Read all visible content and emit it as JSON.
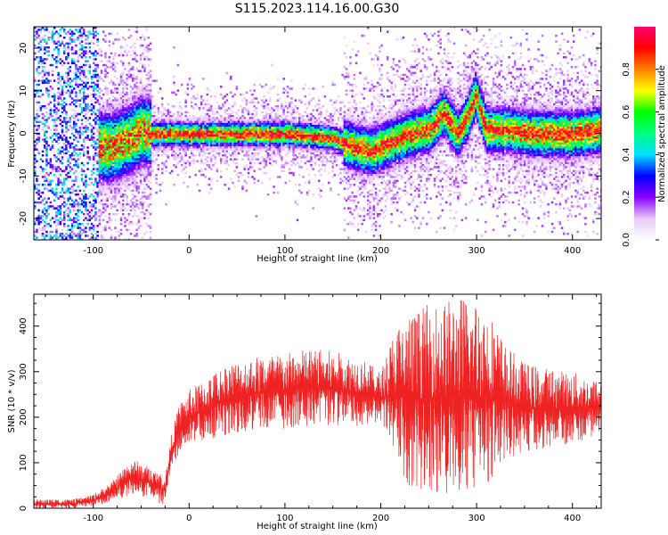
{
  "chart_data": [
    {
      "type": "heatmap",
      "title": "S115.2023.114.16.00.G30",
      "xlabel": "Height of straight line (km)",
      "ylabel": "Frequency (Hz)",
      "xlim": [
        -162,
        430
      ],
      "ylim": [
        -25,
        25
      ],
      "xticks": [
        -100,
        0,
        100,
        200,
        300,
        400
      ],
      "yticks": [
        -20,
        -10,
        0,
        10,
        20
      ],
      "colorbar": {
        "label": "Normalized spectral amplitude",
        "range": [
          0,
          1
        ],
        "ticks": [
          0.0,
          0.2,
          0.4,
          0.6,
          0.8
        ],
        "colormap": [
          "#ffffff",
          "#e8c8f8",
          "#8800ff",
          "#0000ff",
          "#00e0ff",
          "#00ff80",
          "#00ff00",
          "#ffff00",
          "#ff8000",
          "#ff0000",
          "#ff0070"
        ]
      },
      "ridge_frequency_hz": {
        "x": [
          -100,
          -80,
          -60,
          -50,
          -40,
          0,
          50,
          100,
          150,
          170,
          190,
          210,
          230,
          250,
          265,
          280,
          290,
          298,
          310,
          330,
          360,
          400,
          430
        ],
        "y": [
          -3,
          -3,
          -1,
          1,
          0,
          0,
          0,
          0,
          -1,
          -3,
          -4,
          -2,
          0,
          1,
          5,
          0,
          4,
          9,
          1,
          1,
          0,
          0,
          1
        ]
      }
    },
    {
      "type": "line",
      "xlabel": "Height of straight line (km)",
      "ylabel": "SNR (10 * v/v)",
      "xlim": [
        -162,
        430
      ],
      "ylim": [
        0,
        470
      ],
      "xticks": [
        -100,
        0,
        100,
        200,
        300,
        400
      ],
      "yticks": [
        0,
        100,
        200,
        300,
        400
      ],
      "line_color": "#ee2222",
      "envelope": {
        "x": [
          -162,
          -120,
          -100,
          -80,
          -60,
          -40,
          -25,
          -18,
          -10,
          0,
          20,
          40,
          60,
          80,
          100,
          120,
          140,
          160,
          180,
          200,
          215,
          230,
          250,
          270,
          290,
          310,
          330,
          350,
          370,
          400,
          430
        ],
        "low": [
          0,
          0,
          5,
          15,
          30,
          20,
          5,
          90,
          120,
          140,
          150,
          160,
          170,
          170,
          175,
          180,
          180,
          180,
          180,
          190,
          100,
          40,
          40,
          30,
          20,
          40,
          110,
          120,
          130,
          140,
          160
        ],
        "high": [
          20,
          20,
          30,
          60,
          110,
          90,
          70,
          170,
          230,
          260,
          290,
          320,
          330,
          340,
          340,
          350,
          350,
          340,
          330,
          300,
          400,
          430,
          450,
          460,
          470,
          450,
          360,
          320,
          310,
          300,
          280
        ]
      }
    }
  ]
}
